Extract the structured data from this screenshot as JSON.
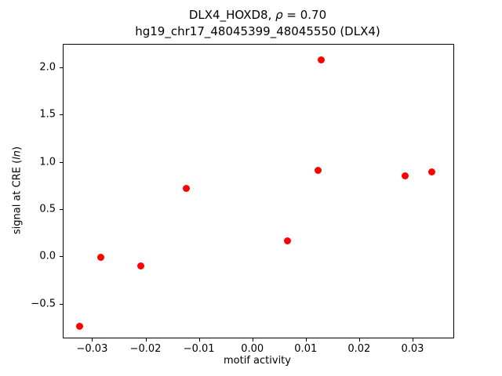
{
  "title": {
    "line1_pre": "DLX4_HOXD8, ",
    "rho": "ρ",
    "line1_post": " = 0.70",
    "line2": "hg19_chr17_48045399_48045550 (DLX4)"
  },
  "axes": {
    "xlabel": "motif activity",
    "ylabel_pre": "signal at CRE (",
    "ylabel_italic": "ln",
    "ylabel_post": ")"
  },
  "chart_data": {
    "type": "scatter",
    "title": "DLX4_HOXD8, ρ = 0.70\nhg19_chr17_48045399_48045550 (DLX4)",
    "xlabel": "motif activity",
    "ylabel": "signal at CRE (ln)",
    "legend": "none",
    "grid": false,
    "marker": "circle",
    "marker_color": "#ff0000",
    "xlim": [
      -0.0355,
      0.0375
    ],
    "ylim": [
      -0.85,
      2.25
    ],
    "x_ticks": [
      {
        "value": -0.03,
        "label": "−0.03"
      },
      {
        "value": -0.02,
        "label": "−0.02"
      },
      {
        "value": -0.01,
        "label": "−0.01"
      },
      {
        "value": 0.0,
        "label": "0.00"
      },
      {
        "value": 0.01,
        "label": "0.01"
      },
      {
        "value": 0.02,
        "label": "0.02"
      },
      {
        "value": 0.03,
        "label": "0.03"
      }
    ],
    "y_ticks": [
      {
        "value": -0.5,
        "label": "−0.5"
      },
      {
        "value": 0.0,
        "label": "0.0"
      },
      {
        "value": 0.5,
        "label": "0.5"
      },
      {
        "value": 1.0,
        "label": "1.0"
      },
      {
        "value": 1.5,
        "label": "1.5"
      },
      {
        "value": 2.0,
        "label": "2.0"
      }
    ],
    "points": [
      {
        "x": -0.0325,
        "y": -0.73
      },
      {
        "x": -0.0285,
        "y": 0.0
      },
      {
        "x": -0.021,
        "y": -0.09
      },
      {
        "x": -0.0125,
        "y": 0.73
      },
      {
        "x": 0.0065,
        "y": 0.17
      },
      {
        "x": 0.0122,
        "y": 0.92
      },
      {
        "x": 0.0128,
        "y": 2.09
      },
      {
        "x": 0.0285,
        "y": 0.86
      },
      {
        "x": 0.0335,
        "y": 0.9
      }
    ]
  }
}
